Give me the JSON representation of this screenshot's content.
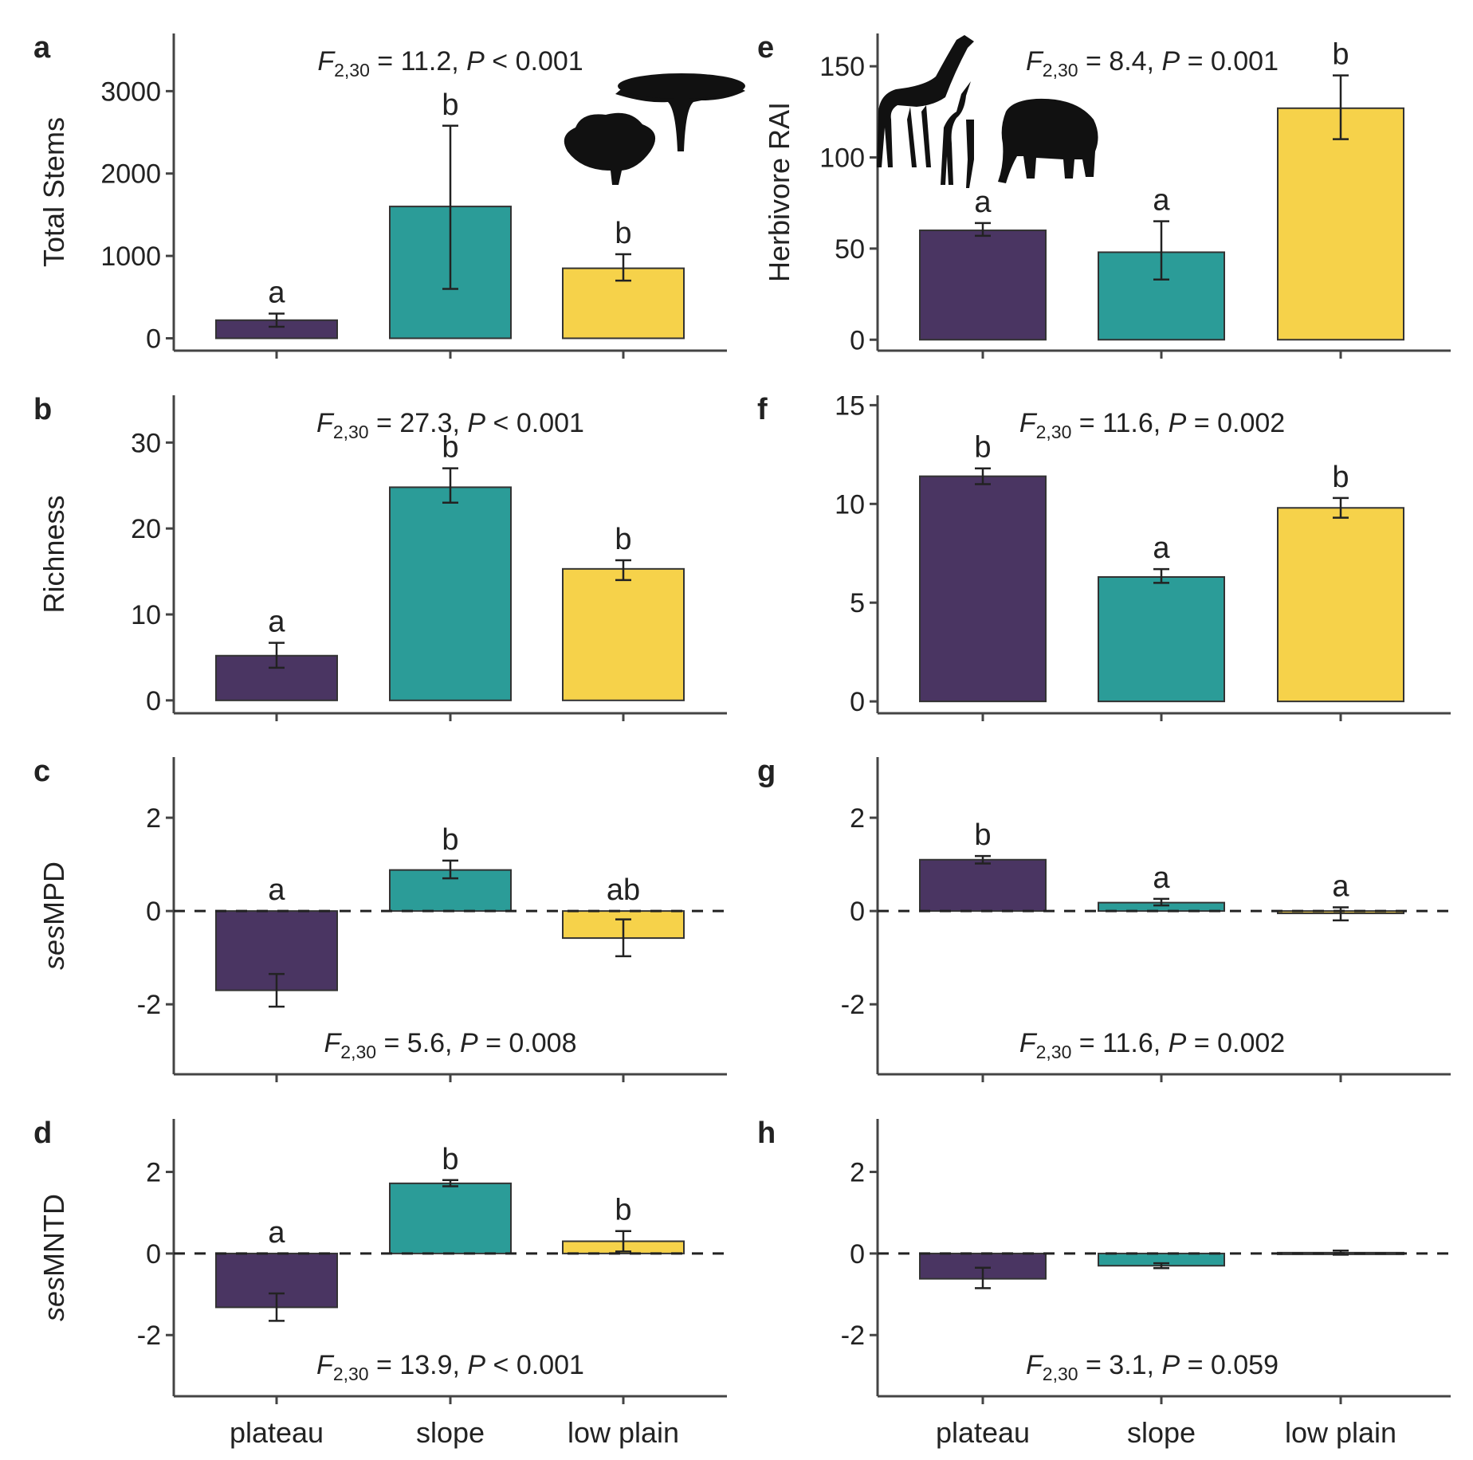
{
  "colors": {
    "plateau": "#4a3562",
    "slope": "#2b9c98",
    "low_plain": "#f6d24a",
    "axis": "#444444",
    "bar_stroke": "#333333"
  },
  "chart_data": [
    {
      "panel": "a",
      "type": "bar",
      "ylabel": "Total Stems",
      "ylabel_italic": "",
      "ylim": [
        -150,
        3700
      ],
      "yticks": [
        0,
        1000,
        2000,
        3000
      ],
      "categories": [
        "plateau",
        "slope",
        "low plain"
      ],
      "values": [
        220,
        1600,
        850
      ],
      "err_low": [
        140,
        600,
        700
      ],
      "err_high": [
        300,
        2580,
        1020
      ],
      "sig": [
        "a",
        "b",
        "b"
      ],
      "zero_line": false,
      "show_xlabels": false,
      "stat": {
        "f": "F",
        "sub": "2,30",
        "mid": " = 11.2, ",
        "p": "P",
        "rest": " < 0.001",
        "pos": "top"
      },
      "silhouette": "trees"
    },
    {
      "panel": "b",
      "type": "bar",
      "ylabel": "Richness",
      "ylabel_italic": "",
      "ylim": [
        -1.5,
        35.5
      ],
      "yticks": [
        0,
        10,
        20,
        30
      ],
      "categories": [
        "plateau",
        "slope",
        "low plain"
      ],
      "values": [
        5.2,
        24.8,
        15.3
      ],
      "err_low": [
        3.8,
        23.0,
        14.0
      ],
      "err_high": [
        6.7,
        27.0,
        16.3
      ],
      "sig": [
        "a",
        "b",
        "b"
      ],
      "zero_line": false,
      "show_xlabels": false,
      "stat": {
        "f": "F",
        "sub": "2,30",
        "mid": " = 27.3, ",
        "p": "P",
        "rest": " < 0.001",
        "pos": "top"
      }
    },
    {
      "panel": "c",
      "type": "bar",
      "ylabel": "MPD",
      "ylabel_italic": "ses",
      "ylim": [
        -3.5,
        3.3
      ],
      "yticks": [
        -2,
        0,
        2
      ],
      "categories": [
        "plateau",
        "slope",
        "low plain"
      ],
      "values": [
        -1.7,
        0.88,
        -0.58
      ],
      "err_low": [
        -2.05,
        0.7,
        -0.97
      ],
      "err_high": [
        -1.35,
        1.08,
        -0.18
      ],
      "sig": [
        "a",
        "b",
        "ab"
      ],
      "zero_line": true,
      "show_xlabels": false,
      "stat": {
        "f": "F",
        "sub": "2,30",
        "mid": " = 5.6, ",
        "p": "P",
        "rest": " = 0.008",
        "pos": "bottom"
      }
    },
    {
      "panel": "d",
      "type": "bar",
      "ylabel": "MNTD",
      "ylabel_italic": "ses",
      "ylim": [
        -3.5,
        3.3
      ],
      "yticks": [
        -2,
        0,
        2
      ],
      "categories": [
        "plateau",
        "slope",
        "low plain"
      ],
      "values": [
        -1.32,
        1.72,
        0.3
      ],
      "err_low": [
        -1.65,
        1.65,
        0.05
      ],
      "err_high": [
        -0.98,
        1.8,
        0.55
      ],
      "sig": [
        "a",
        "b",
        "b"
      ],
      "zero_line": true,
      "show_xlabels": true,
      "stat": {
        "f": "F",
        "sub": "2,30",
        "mid": " = 13.9, ",
        "p": "P",
        "rest": " < 0.001",
        "pos": "bottom"
      }
    },
    {
      "panel": "e",
      "type": "bar",
      "ylabel": "Herbivore RAI",
      "ylabel_italic": "",
      "ylim": [
        -6,
        168
      ],
      "yticks": [
        0,
        50,
        100,
        150
      ],
      "categories": [
        "plateau",
        "slope",
        "low plain"
      ],
      "values": [
        60,
        48,
        127
      ],
      "err_low": [
        57,
        33,
        110
      ],
      "err_high": [
        64,
        65,
        145
      ],
      "sig": [
        "a",
        "a",
        "b"
      ],
      "zero_line": false,
      "show_xlabels": false,
      "stat": {
        "f": "F",
        "sub": "2,30",
        "mid": " = 8.4, ",
        "p": "P",
        "rest": " = 0.001",
        "pos": "top"
      },
      "silhouette": "herbivores"
    },
    {
      "panel": "f",
      "type": "bar",
      "ylabel": "",
      "ylabel_italic": "",
      "ylim": [
        -0.6,
        15.5
      ],
      "yticks": [
        0,
        5,
        10,
        15
      ],
      "categories": [
        "plateau",
        "slope",
        "low plain"
      ],
      "values": [
        11.4,
        6.3,
        9.8
      ],
      "err_low": [
        11.0,
        6.0,
        9.3
      ],
      "err_high": [
        11.8,
        6.7,
        10.3
      ],
      "sig": [
        "b",
        "a",
        "b"
      ],
      "zero_line": false,
      "show_xlabels": false,
      "stat": {
        "f": "F",
        "sub": "2,30",
        "mid": " = 11.6, ",
        "p": "P",
        "rest": " = 0.002",
        "pos": "top"
      }
    },
    {
      "panel": "g",
      "type": "bar",
      "ylabel": "",
      "ylabel_italic": "",
      "ylim": [
        -3.5,
        3.3
      ],
      "yticks": [
        -2,
        0,
        2
      ],
      "categories": [
        "plateau",
        "slope",
        "low plain"
      ],
      "values": [
        1.1,
        0.18,
        -0.05
      ],
      "err_low": [
        1.02,
        0.12,
        -0.2
      ],
      "err_high": [
        1.18,
        0.26,
        0.08
      ],
      "sig": [
        "b",
        "a",
        "a"
      ],
      "zero_line": true,
      "show_xlabels": false,
      "stat": {
        "f": "F",
        "sub": "2,30",
        "mid": " = 11.6, ",
        "p": "P",
        "rest": " = 0.002",
        "pos": "bottom"
      }
    },
    {
      "panel": "h",
      "type": "bar",
      "ylabel": "",
      "ylabel_italic": "",
      "ylim": [
        -3.5,
        3.3
      ],
      "yticks": [
        -2,
        0,
        2
      ],
      "categories": [
        "plateau",
        "slope",
        "low plain"
      ],
      "values": [
        -0.62,
        -0.3,
        0.02
      ],
      "err_low": [
        -0.85,
        -0.36,
        -0.03
      ],
      "err_high": [
        -0.35,
        -0.24,
        0.07
      ],
      "sig": [
        "",
        "",
        ""
      ],
      "zero_line": true,
      "show_xlabels": true,
      "stat": {
        "f": "F",
        "sub": "2,30",
        "mid": " = 3.1, ",
        "p": "P",
        "rest": " = 0.059",
        "pos": "bottom"
      }
    }
  ]
}
